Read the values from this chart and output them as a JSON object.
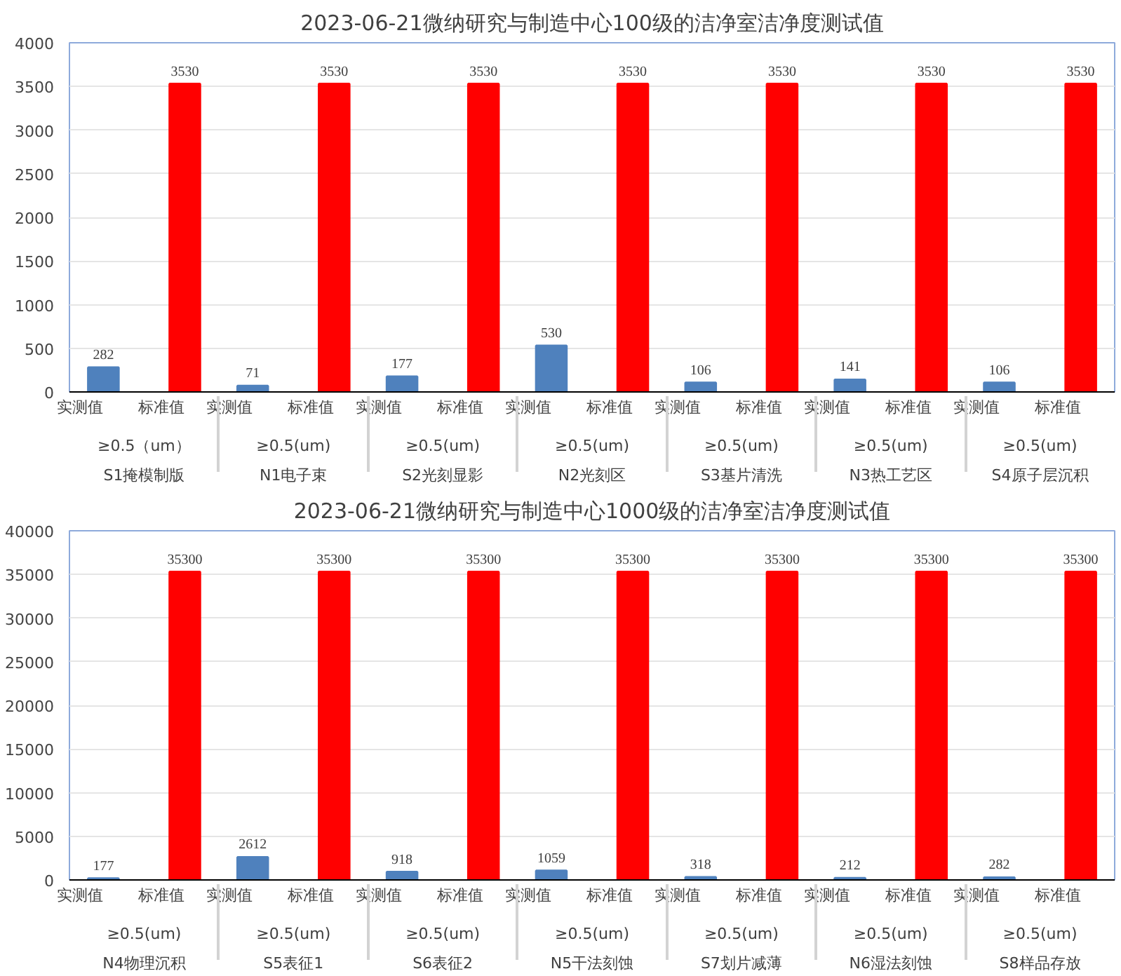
{
  "chart_data": [
    {
      "type": "bar",
      "title": "2023-06-21微纳研究与制造中心100级的洁净室洁净度测试值",
      "categories": [
        "S1掩模制版",
        "N1电子束",
        "S2光刻显影",
        "N2光刻区",
        "S3基片清洗",
        "N3热工艺区",
        "S4原子层沉积"
      ],
      "series": [
        {
          "name": "实测值",
          "color": "#4f81bd",
          "values": [
            282,
            71,
            177,
            530,
            106,
            141,
            106
          ]
        },
        {
          "name": "标准值",
          "color": "#ff0000",
          "values": [
            3530,
            3530,
            3530,
            3530,
            3530,
            3530,
            3530
          ]
        }
      ],
      "annotations": [
        "≥0.5（um）",
        "≥0.5(um)",
        "≥0.5(um)",
        "≥0.5(um)",
        "≥0.5(um)",
        "≥0.5(um)",
        "≥0.5(um)"
      ],
      "ylim": [
        0,
        4000
      ],
      "yticks": [
        0,
        500,
        1000,
        1500,
        2000,
        2500,
        3000,
        3500,
        4000
      ],
      "grid": "y",
      "data_labels": true
    },
    {
      "type": "bar",
      "title": "2023-06-21微纳研究与制造中心1000级的洁净室洁净度测试值",
      "categories": [
        "N4物理沉积",
        "S5表征1",
        "S6表征2",
        "N5干法刻蚀",
        "S7划片减薄",
        "N6湿法刻蚀",
        "S8样品存放"
      ],
      "series": [
        {
          "name": "实测值",
          "color": "#4f81bd",
          "values": [
            177,
            2612,
            918,
            1059,
            318,
            212,
            282
          ]
        },
        {
          "name": "标准值",
          "color": "#ff0000",
          "values": [
            35300,
            35300,
            35300,
            35300,
            35300,
            35300,
            35300
          ]
        }
      ],
      "annotations": [
        "≥0.5(um)",
        "≥0.5(um)",
        "≥0.5(um)",
        "≥0.5(um)",
        "≥0.5(um)",
        "≥0.5(um)",
        "≥0.5(um)"
      ],
      "ylim": [
        0,
        40000
      ],
      "yticks": [
        0,
        5000,
        10000,
        15000,
        20000,
        25000,
        30000,
        35000,
        40000
      ],
      "grid": "y",
      "data_labels": true
    }
  ]
}
